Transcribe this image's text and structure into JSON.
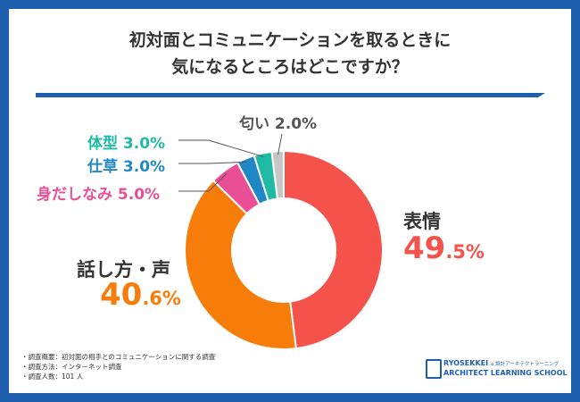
{
  "title": {
    "line1": "初対面とコミュニケーションを取るときに",
    "line2": "気になるところはどこですか？"
  },
  "chart_data": {
    "type": "pie",
    "variant": "donut",
    "title": "初対面とコミュニケーションを取るときに気になるところはどこですか？",
    "unit": "%",
    "categories": [
      "表情",
      "話し方・声",
      "身だしなみ",
      "仕草",
      "体型",
      "匂い"
    ],
    "values": [
      49.5,
      40.6,
      5.0,
      3.0,
      3.0,
      2.0
    ],
    "colors": [
      "#f5524b",
      "#f77d0a",
      "#ea4f96",
      "#1f88c4",
      "#1fbaa3",
      "#c6c6c6"
    ],
    "labels": {
      "hyojo": {
        "name": "表情",
        "int": "49",
        "dec": ".5%"
      },
      "hanashikata": {
        "name": "話し方・声",
        "int": "40",
        "dec": ".6%"
      },
      "midashinami": "身だしなみ 5.0%",
      "shigusa": "仕草 3.0%",
      "taikei": "体型 3.0%",
      "nioi": "匂い 2.0%"
    }
  },
  "notes": {
    "overview": "・調査概要：初対面の相手とのコミュニケーションに関する調査",
    "method": "・調査方法：インターネット調査",
    "count": "・調査人数：101 人"
  },
  "logo": {
    "name": "RYOSEKKEI",
    "tagline": "⌂ 設計アーキテクトラーニング",
    "school": "ARCHITECT LEARNING SCHOOL"
  }
}
